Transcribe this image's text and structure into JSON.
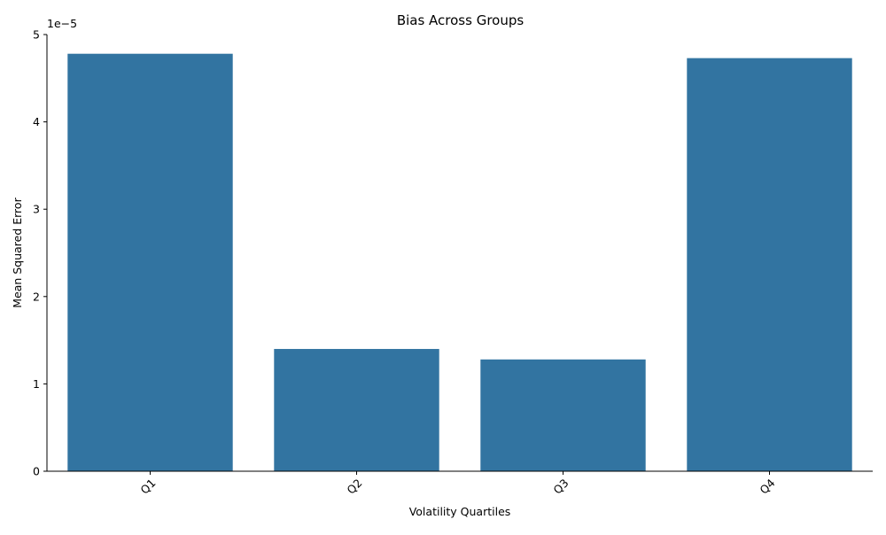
{
  "chart_data": {
    "type": "bar",
    "title": "Bias Across Groups",
    "xlabel": "Volatility Quartiles",
    "ylabel": "Mean Squared Error",
    "scale_factor_label": "1e−5",
    "categories": [
      "Q1",
      "Q2",
      "Q3",
      "Q4"
    ],
    "values": [
      4.78e-05,
      1.4e-05,
      1.28e-05,
      4.73e-05
    ],
    "ylim": [
      0,
      5e-05
    ],
    "yticks": [
      0,
      1e-05,
      2e-05,
      3e-05,
      4e-05,
      5e-05
    ],
    "ytick_labels": [
      "0",
      "1",
      "2",
      "3",
      "4",
      "5"
    ],
    "bar_color": "#3274a1",
    "grid": false,
    "xtick_rotation": "45"
  }
}
